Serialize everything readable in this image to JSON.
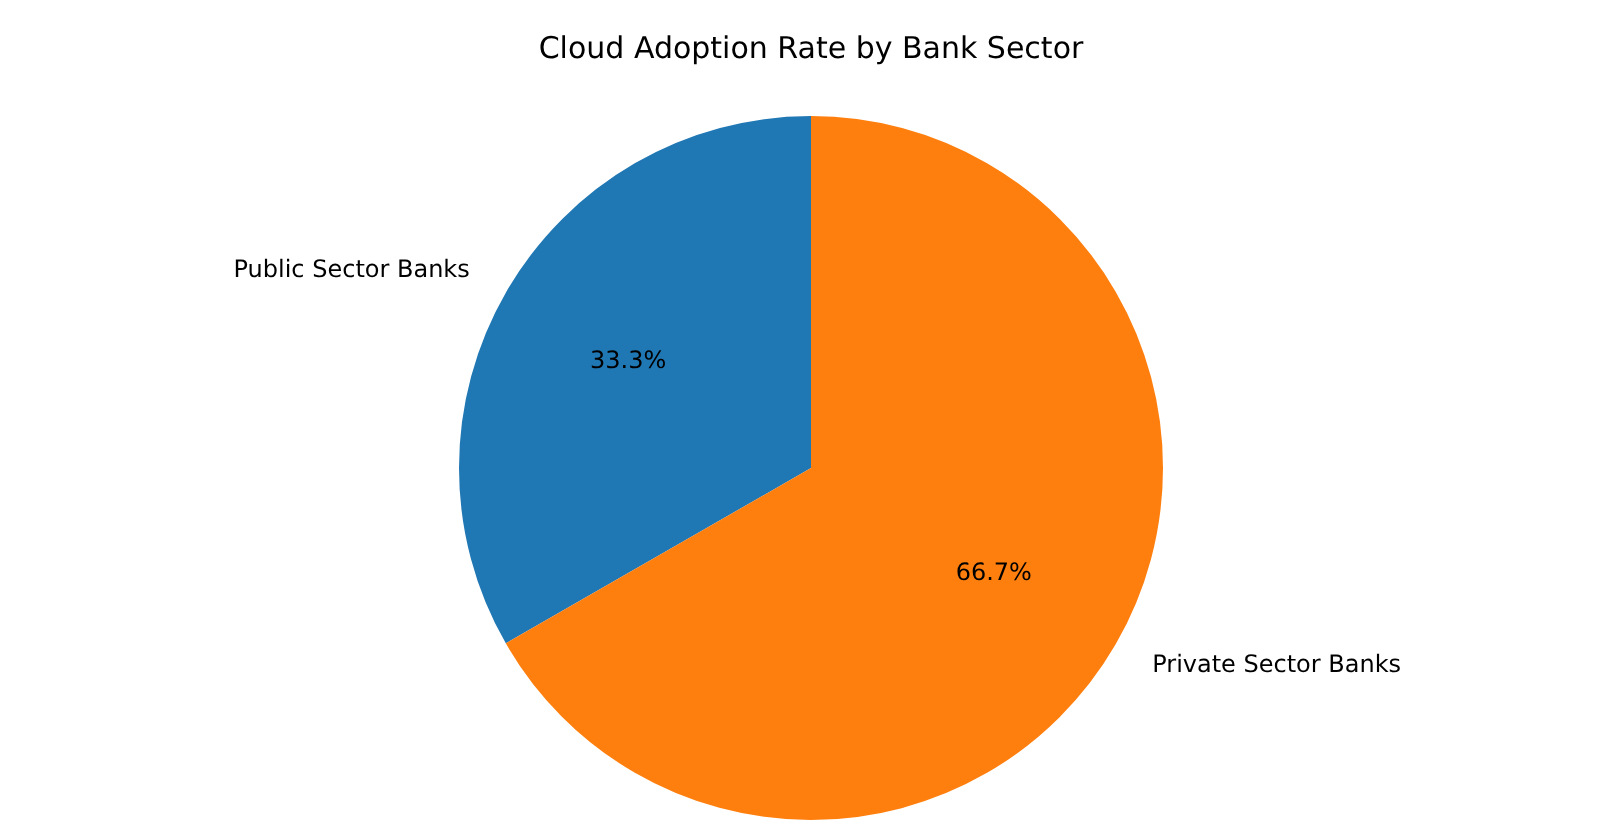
{
  "chart_data": {
    "type": "pie",
    "title": "Cloud Adoption Rate by Bank Sector",
    "categories": [
      "Public Sector Banks",
      "Private Sector Banks"
    ],
    "values": [
      33.3,
      66.7
    ],
    "colors": [
      "#1f77b4",
      "#ff7f0e"
    ],
    "value_labels": [
      "33.3%",
      "66.7%"
    ],
    "legend": false
  }
}
